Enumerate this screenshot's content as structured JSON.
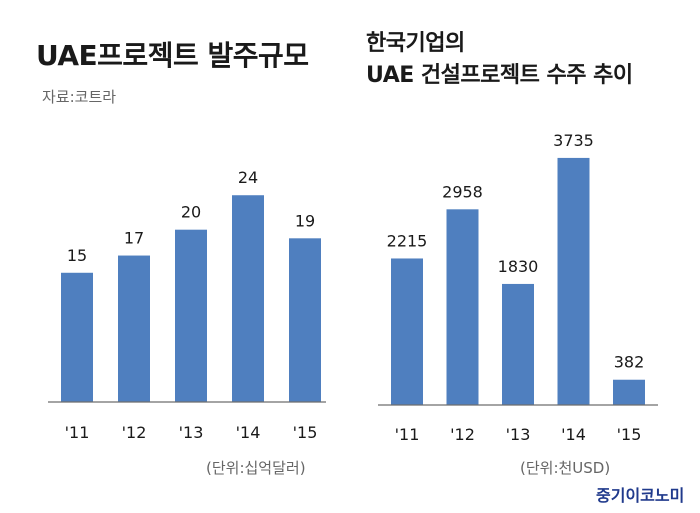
{
  "left_panel": {
    "title": "UAE프로젝트 발주규모",
    "source": "자료:코트라",
    "unit": "(단위:십억달러)"
  },
  "right_panel": {
    "title_line1": "한국기업의",
    "title_line2": "UAE 건설프로젝트 수주 추이",
    "unit": "(단위:천USD)"
  },
  "brand": "중기이코노미",
  "colors": {
    "bar": "#4f7fbf",
    "brand": "#203a8c"
  },
  "chart_data": [
    {
      "type": "bar",
      "title": "UAE프로젝트 발주규모",
      "categories": [
        "'11",
        "'12",
        "'13",
        "'14",
        "'15"
      ],
      "values": [
        15,
        17,
        20,
        24,
        19
      ],
      "ylim": [
        0,
        26
      ],
      "unit": "(단위:십억달러)",
      "grid": false
    },
    {
      "type": "bar",
      "title": "한국기업의 UAE 건설프로젝트 수주 추이",
      "categories": [
        "'11",
        "'12",
        "'13",
        "'14",
        "'15"
      ],
      "values": [
        2215,
        2958,
        1830,
        3735,
        382
      ],
      "ylim": [
        0,
        3900
      ],
      "unit": "(단위:천USD)",
      "grid": false
    }
  ]
}
